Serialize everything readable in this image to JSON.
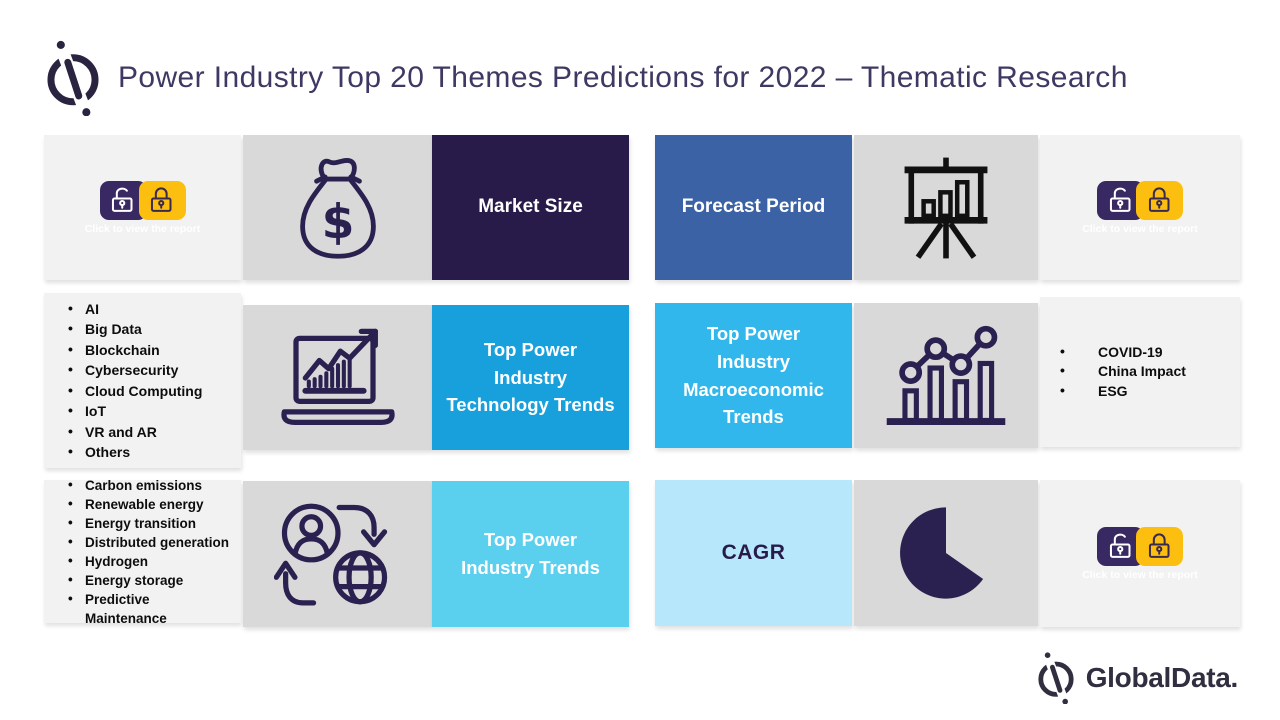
{
  "header": {
    "title": "Power Industry Top 20 Themes Predictions for 2022 – Thematic Research"
  },
  "lock_badge": {
    "caption": "Click to view the report"
  },
  "row1": {
    "market_size_label": "Market Size",
    "forecast_period_label": "Forecast Period"
  },
  "row2": {
    "technology_themes": [
      "AI",
      "Big Data",
      "Blockchain",
      "Cybersecurity",
      "Cloud Computing",
      "IoT",
      "VR and AR",
      "Others"
    ],
    "technology_trends_label": "Top Power\nIndustry\nTechnology Trends",
    "macroeconomic_trends_label": "Top Power\nIndustry\nMacroeconomic\nTrends",
    "macroeconomic_themes": [
      "COVID-19",
      "China Impact",
      "ESG"
    ]
  },
  "row3": {
    "industry_themes": [
      "Carbon emissions",
      "Renewable energy",
      "Energy transition",
      "Distributed generation",
      "Hydrogen",
      "Energy storage",
      "Predictive Maintenance"
    ],
    "industry_trends_label": "Top Power\nIndustry Trends",
    "cagr_label": "CAGR"
  },
  "footer": {
    "brand": "GlobalData."
  },
  "icons": {
    "logo_mark": "globaldata-logo-mark",
    "money_bag": "money-bag-icon",
    "presentation_chart": "presentation-easel-chart-icon",
    "laptop_growth": "laptop-growth-chart-icon",
    "bars_trend": "bar-chart-dots-trend-icon",
    "people_globe": "person-globe-exchange-icon",
    "pie": "pie-chart-icon",
    "lock_open": "unlocked-icon",
    "lock_closed": "locked-icon"
  },
  "colors": {
    "title_text": "#3e3963",
    "panel_dark_navy": "#281b4a",
    "panel_blue": "#3a62a5",
    "panel_bright_blue": "#18a0dd",
    "panel_medium_blue": "#31b7ec",
    "panel_sky_blue": "#5bcfee",
    "panel_pale_blue": "#b7e7fb",
    "panel_gray": "#d9d9d9",
    "panel_light_gray": "#f2f2f2",
    "lock_purple": "#392963",
    "lock_yellow": "#fdbf0f",
    "icon_navy": "#2b2150"
  }
}
